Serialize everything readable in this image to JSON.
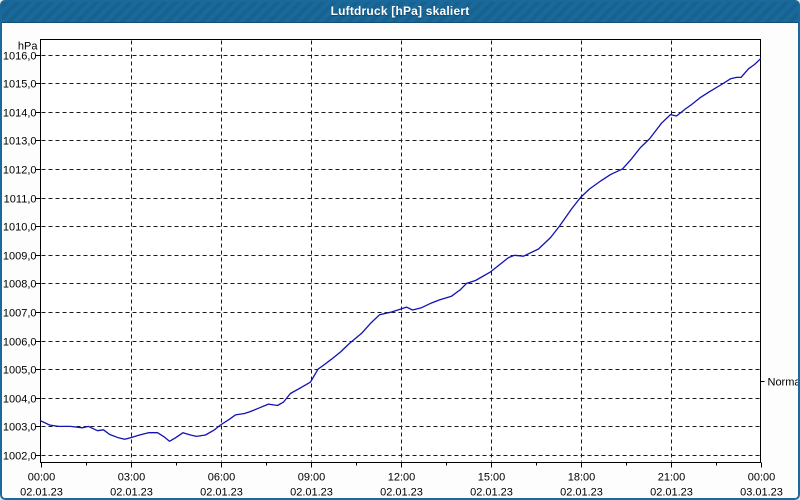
{
  "window": {
    "title": "Luftdruck [hPa] skaliert"
  },
  "colors": {
    "titlebar": "#1a699c",
    "window_border": "#1a699c",
    "line": "#1212b4",
    "grid": "#1a1a1a",
    "plot_background": "#ffffff",
    "text": "#000000"
  },
  "chart_data": {
    "type": "line",
    "title": "Luftdruck [hPa] skaliert",
    "ylabel": "hPa",
    "xlabel": "",
    "grid": "dashed",
    "legend_position": "none",
    "ylim": [
      1001.75,
      1016.55
    ],
    "xlim_hours": [
      0,
      24
    ],
    "y_ticks": [
      {
        "value": 1016,
        "label": "1016,0"
      },
      {
        "value": 1015,
        "label": "1015,0"
      },
      {
        "value": 1014,
        "label": "1014,0"
      },
      {
        "value": 1013,
        "label": "1013,0"
      },
      {
        "value": 1012,
        "label": "1012,0"
      },
      {
        "value": 1011,
        "label": "1011,0"
      },
      {
        "value": 1010,
        "label": "1010,0"
      },
      {
        "value": 1009,
        "label": "1009,0"
      },
      {
        "value": 1008,
        "label": "1008,0"
      },
      {
        "value": 1007,
        "label": "1007,0"
      },
      {
        "value": 1006,
        "label": "1006,0"
      },
      {
        "value": 1005,
        "label": "1005,0"
      },
      {
        "value": 1004,
        "label": "1004,0"
      },
      {
        "value": 1003,
        "label": "1003,0"
      },
      {
        "value": 1002,
        "label": "1002,0"
      }
    ],
    "x_ticks": [
      {
        "hour": 0,
        "time": "00:00",
        "date": "02.01.23"
      },
      {
        "hour": 3,
        "time": "03:00",
        "date": "02.01.23"
      },
      {
        "hour": 6,
        "time": "06:00",
        "date": "02.01.23"
      },
      {
        "hour": 9,
        "time": "09:00",
        "date": "02.01.23"
      },
      {
        "hour": 12,
        "time": "12:00",
        "date": "02.01.23"
      },
      {
        "hour": 15,
        "time": "15:00",
        "date": "02.01.23"
      },
      {
        "hour": 18,
        "time": "18:00",
        "date": "02.01.23"
      },
      {
        "hour": 21,
        "time": "21:00",
        "date": "02.01.23"
      },
      {
        "hour": 24,
        "time": "00:00",
        "date": "03.01.23"
      }
    ],
    "x_minor_step_hours": 1.5,
    "normal_marker": {
      "label": "Normal",
      "value": 1004.6
    },
    "series": [
      {
        "name": "Luftdruck",
        "color": "#1212b4",
        "points": [
          [
            0.0,
            1003.2
          ],
          [
            0.3,
            1003.05
          ],
          [
            0.6,
            1003.0
          ],
          [
            1.0,
            1003.0
          ],
          [
            1.4,
            1002.95
          ],
          [
            1.6,
            1003.0
          ],
          [
            1.9,
            1002.85
          ],
          [
            2.1,
            1002.88
          ],
          [
            2.3,
            1002.72
          ],
          [
            2.6,
            1002.6
          ],
          [
            2.8,
            1002.55
          ],
          [
            3.0,
            1002.6
          ],
          [
            3.3,
            1002.7
          ],
          [
            3.6,
            1002.78
          ],
          [
            3.9,
            1002.78
          ],
          [
            4.1,
            1002.65
          ],
          [
            4.3,
            1002.48
          ],
          [
            4.5,
            1002.6
          ],
          [
            4.75,
            1002.78
          ],
          [
            5.0,
            1002.7
          ],
          [
            5.2,
            1002.65
          ],
          [
            5.5,
            1002.7
          ],
          [
            5.8,
            1002.88
          ],
          [
            6.0,
            1003.05
          ],
          [
            6.3,
            1003.25
          ],
          [
            6.5,
            1003.4
          ],
          [
            6.8,
            1003.45
          ],
          [
            7.0,
            1003.52
          ],
          [
            7.3,
            1003.65
          ],
          [
            7.6,
            1003.78
          ],
          [
            7.9,
            1003.73
          ],
          [
            8.1,
            1003.85
          ],
          [
            8.33,
            1004.15
          ],
          [
            8.67,
            1004.35
          ],
          [
            9.0,
            1004.55
          ],
          [
            9.25,
            1005.0
          ],
          [
            9.45,
            1005.15
          ],
          [
            9.7,
            1005.35
          ],
          [
            10.0,
            1005.6
          ],
          [
            10.3,
            1005.9
          ],
          [
            10.7,
            1006.25
          ],
          [
            11.0,
            1006.6
          ],
          [
            11.3,
            1006.9
          ],
          [
            11.7,
            1007.0
          ],
          [
            12.0,
            1007.1
          ],
          [
            12.2,
            1007.17
          ],
          [
            12.4,
            1007.07
          ],
          [
            12.7,
            1007.15
          ],
          [
            13.0,
            1007.3
          ],
          [
            13.3,
            1007.42
          ],
          [
            13.7,
            1007.55
          ],
          [
            14.0,
            1007.78
          ],
          [
            14.2,
            1008.0
          ],
          [
            14.5,
            1008.1
          ],
          [
            15.0,
            1008.4
          ],
          [
            15.3,
            1008.65
          ],
          [
            15.6,
            1008.9
          ],
          [
            15.8,
            1008.98
          ],
          [
            16.1,
            1008.95
          ],
          [
            16.3,
            1009.05
          ],
          [
            16.6,
            1009.2
          ],
          [
            17.0,
            1009.6
          ],
          [
            17.3,
            1010.0
          ],
          [
            17.7,
            1010.6
          ],
          [
            18.0,
            1011.0
          ],
          [
            18.3,
            1011.3
          ],
          [
            18.7,
            1011.6
          ],
          [
            19.0,
            1011.8
          ],
          [
            19.4,
            1012.0
          ],
          [
            19.7,
            1012.35
          ],
          [
            20.0,
            1012.75
          ],
          [
            20.3,
            1013.05
          ],
          [
            20.7,
            1013.6
          ],
          [
            21.0,
            1013.9
          ],
          [
            21.2,
            1013.85
          ],
          [
            21.5,
            1014.1
          ],
          [
            21.7,
            1014.25
          ],
          [
            22.0,
            1014.5
          ],
          [
            22.3,
            1014.7
          ],
          [
            22.7,
            1014.95
          ],
          [
            23.0,
            1015.15
          ],
          [
            23.2,
            1015.2
          ],
          [
            23.35,
            1015.2
          ],
          [
            23.6,
            1015.5
          ],
          [
            23.8,
            1015.65
          ],
          [
            24.0,
            1015.85
          ]
        ]
      }
    ]
  }
}
